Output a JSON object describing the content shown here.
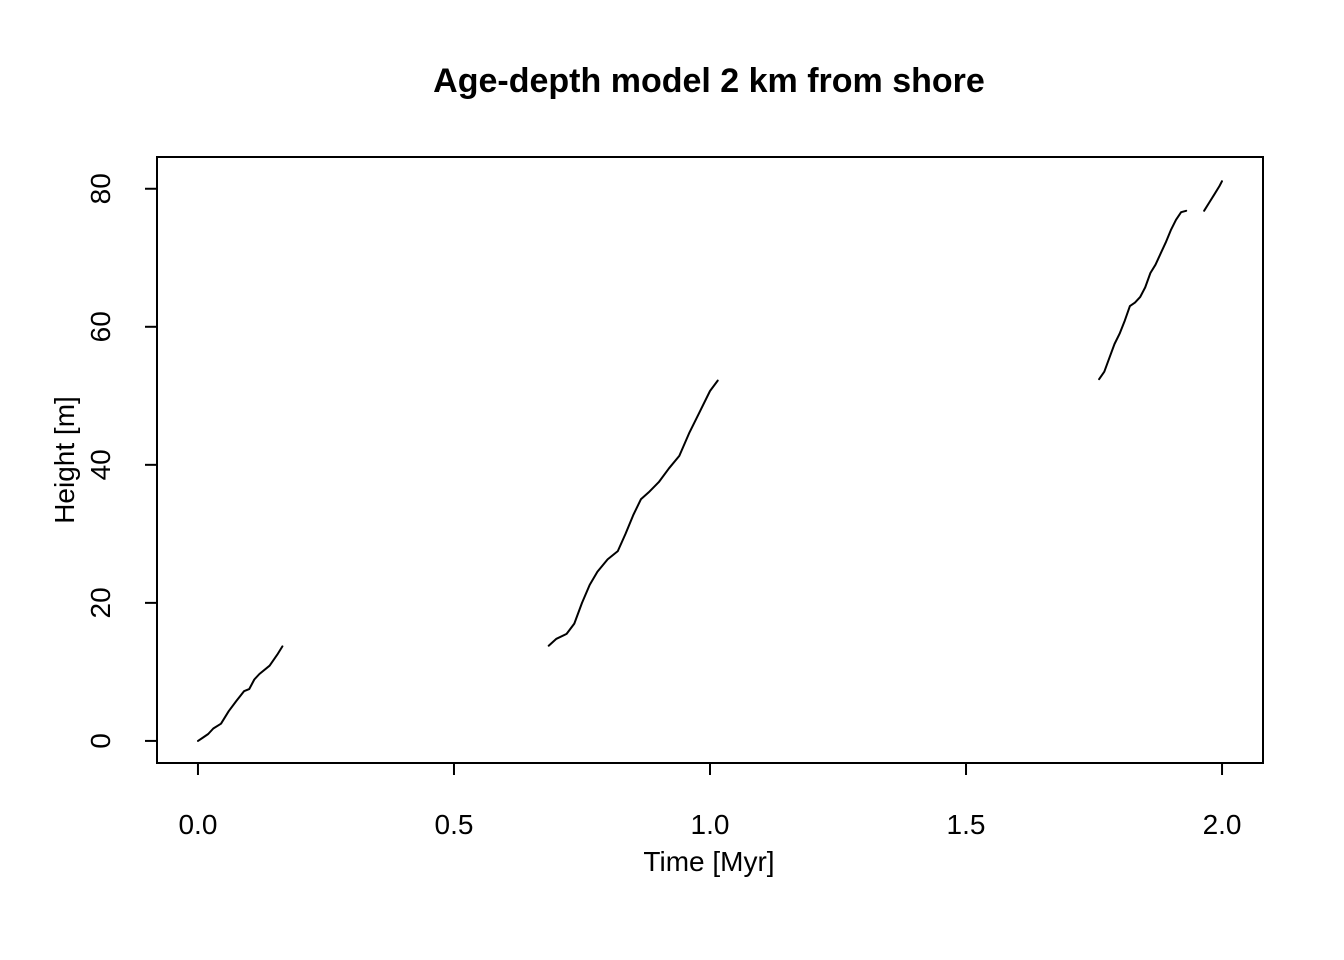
{
  "chart_data": {
    "type": "line",
    "title": "Age-depth model 2 km from shore",
    "xlabel": "Time [Myr]",
    "ylabel": "Height [m]",
    "xlim": [
      -0.08,
      2.08
    ],
    "ylim": [
      -3.2,
      84.6
    ],
    "xticks": [
      0.0,
      0.5,
      1.0,
      1.5,
      2.0
    ],
    "xtick_labels": [
      "0.0",
      "0.5",
      "1.0",
      "1.5",
      "2.0"
    ],
    "yticks": [
      0,
      20,
      40,
      60,
      80
    ],
    "ytick_labels": [
      "0",
      "20",
      "40",
      "60",
      "80"
    ],
    "grid": false,
    "legend": "none",
    "series": [
      {
        "x": [
          0.0,
          0.01,
          0.02,
          0.03,
          0.045,
          0.06,
          0.075,
          0.09,
          0.1,
          0.11,
          0.12,
          0.14,
          0.155,
          0.165
        ],
        "y": [
          0.0,
          0.5,
          1.0,
          1.8,
          2.5,
          4.3,
          5.8,
          7.2,
          7.5,
          8.9,
          9.7,
          10.9,
          12.5,
          13.7
        ]
      },
      {
        "x": [
          0.685,
          0.7,
          0.72,
          0.735,
          0.75,
          0.765,
          0.78,
          0.8,
          0.82,
          0.835,
          0.85,
          0.865,
          0.88,
          0.9,
          0.92,
          0.94,
          0.96,
          0.98,
          1.0,
          1.015
        ],
        "y": [
          13.8,
          14.8,
          15.5,
          17.0,
          20.0,
          22.6,
          24.5,
          26.3,
          27.5,
          30.0,
          32.7,
          35.0,
          36.0,
          37.5,
          39.5,
          41.3,
          44.7,
          47.7,
          50.7,
          52.2
        ]
      },
      {
        "x": [
          1.76,
          1.77,
          1.78,
          1.79,
          1.8,
          1.81,
          1.82,
          1.83,
          1.84,
          1.85,
          1.86,
          1.87,
          1.88,
          1.89,
          1.9,
          1.91,
          1.92,
          1.93
        ],
        "y": [
          52.4,
          53.5,
          55.5,
          57.5,
          59.0,
          60.9,
          63.0,
          63.5,
          64.3,
          65.7,
          67.8,
          69.0,
          70.6,
          72.2,
          74.0,
          75.5,
          76.6,
          76.8
        ]
      },
      {
        "x": [
          1.965,
          1.975,
          1.985,
          1.995,
          2.0
        ],
        "y": [
          76.8,
          78.0,
          79.2,
          80.4,
          81.1
        ]
      }
    ]
  }
}
